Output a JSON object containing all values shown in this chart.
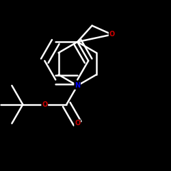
{
  "bg_color": "#000000",
  "bond_color": "#ffffff",
  "N_color": "#0000ee",
  "O_color": "#cc0000",
  "lw": 1.8,
  "dg": 0.022,
  "figsize": [
    2.5,
    2.5
  ],
  "dpi": 100,
  "xlim": [
    0.05,
    0.95
  ],
  "ylim": [
    0.05,
    0.95
  ]
}
